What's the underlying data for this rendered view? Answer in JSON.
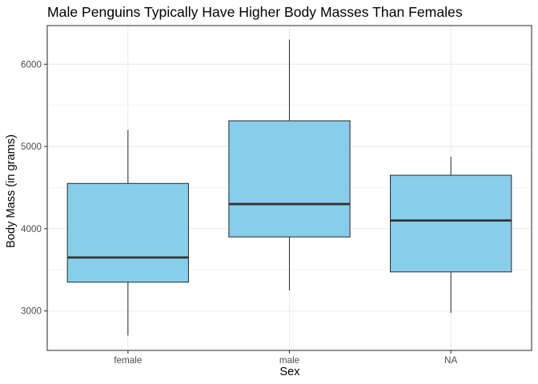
{
  "chart_data": {
    "type": "box",
    "title": "Male Penguins Typically Have Higher Body Masses Than Females",
    "xlabel": "Sex",
    "ylabel": "Body Mass (in grams)",
    "ylim": [
      2520,
      6470
    ],
    "yticks": [
      3000,
      4000,
      5000,
      6000
    ],
    "grid": true,
    "box_fill": "#87CEEB",
    "box_stroke": "#333333",
    "categories": [
      "female",
      "male",
      "NA"
    ],
    "boxes": [
      {
        "category": "female",
        "min": 2700,
        "q1": 3350,
        "median": 3650,
        "q3": 4550,
        "max": 5200
      },
      {
        "category": "male",
        "min": 3250,
        "q1": 3900,
        "median": 4300,
        "q3": 5312,
        "max": 6300
      },
      {
        "category": "NA",
        "min": 2975,
        "q1": 3475,
        "median": 4100,
        "q3": 4650,
        "max": 4875
      }
    ]
  }
}
